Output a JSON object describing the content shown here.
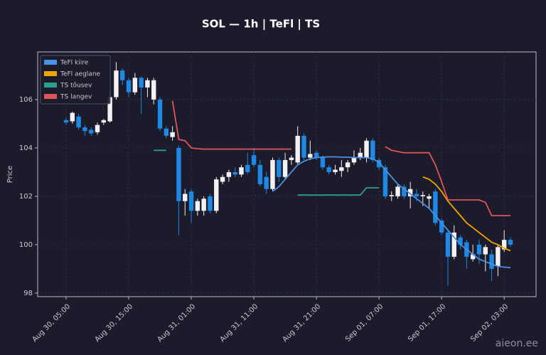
{
  "chart_data": {
    "type": "candlestick",
    "title": "SOL — 1h  |  TeFl  |  TS",
    "y_label": "Price",
    "watermark": "aieon.ee",
    "x": [
      "Aug 30, 05:00",
      "Aug 30, 06:00",
      "Aug 30, 07:00",
      "Aug 30, 08:00",
      "Aug 30, 09:00",
      "Aug 30, 10:00",
      "Aug 30, 11:00",
      "Aug 30, 12:00",
      "Aug 30, 13:00",
      "Aug 30, 14:00",
      "Aug 30, 15:00",
      "Aug 30, 16:00",
      "Aug 30, 17:00",
      "Aug 30, 18:00",
      "Aug 30, 19:00",
      "Aug 30, 20:00",
      "Aug 30, 21:00",
      "Aug 30, 22:00",
      "Aug 30, 23:00",
      "Aug 31, 00:00",
      "Aug 31, 01:00",
      "Aug 31, 02:00",
      "Aug 31, 03:00",
      "Aug 31, 04:00",
      "Aug 31, 05:00",
      "Aug 31, 06:00",
      "Aug 31, 07:00",
      "Aug 31, 08:00",
      "Aug 31, 09:00",
      "Aug 31, 10:00",
      "Aug 31, 11:00",
      "Aug 31, 12:00",
      "Aug 31, 13:00",
      "Aug 31, 14:00",
      "Aug 31, 15:00",
      "Aug 31, 16:00",
      "Aug 31, 17:00",
      "Aug 31, 18:00",
      "Aug 31, 19:00",
      "Aug 31, 20:00",
      "Aug 31, 21:00",
      "Aug 31, 22:00",
      "Aug 31, 23:00",
      "Sep 01, 00:00",
      "Sep 01, 01:00",
      "Sep 01, 02:00",
      "Sep 01, 03:00",
      "Sep 01, 04:00",
      "Sep 01, 05:00",
      "Sep 01, 06:00",
      "Sep 01, 07:00",
      "Sep 01, 08:00",
      "Sep 01, 09:00",
      "Sep 01, 10:00",
      "Sep 01, 11:00",
      "Sep 01, 12:00",
      "Sep 01, 13:00",
      "Sep 01, 14:00",
      "Sep 01, 15:00",
      "Sep 01, 16:00",
      "Sep 01, 17:00",
      "Sep 01, 18:00",
      "Sep 01, 19:00",
      "Sep 01, 20:00",
      "Sep 01, 21:00",
      "Sep 01, 22:00",
      "Sep 01, 23:00",
      "Sep 02, 00:00",
      "Sep 02, 01:00",
      "Sep 02, 02:00",
      "Sep 02, 03:00",
      "Sep 02, 04:00"
    ],
    "candles": {
      "open": [
        105.15,
        105.1,
        105.3,
        104.85,
        104.75,
        104.65,
        105.05,
        105.1,
        106.1,
        107.2,
        106.8,
        106.3,
        106.9,
        106.5,
        106.0,
        106.0,
        104.8,
        104.45,
        104.0,
        101.8,
        102.2,
        101.4,
        101.4,
        102.0,
        101.4,
        102.6,
        102.8,
        103.0,
        102.9,
        103.3,
        103.7,
        103.3,
        102.8,
        102.3,
        103.5,
        102.8,
        103.5,
        103.4,
        104.5,
        103.6,
        103.8,
        103.6,
        103.2,
        103.0,
        103.05,
        103.2,
        103.4,
        103.6,
        103.6,
        104.3,
        103.5,
        103.2,
        102.0,
        102.0,
        102.4,
        102.0,
        102.1,
        102.0,
        101.9,
        102.2,
        101.0,
        100.5,
        99.5,
        100.3,
        100.1,
        99.4,
        100.0,
        99.6,
        99.6,
        99.1,
        99.8,
        100.2
      ],
      "high": [
        105.25,
        105.5,
        105.4,
        104.95,
        104.85,
        105.05,
        105.2,
        106.3,
        107.55,
        107.3,
        106.9,
        107.1,
        106.95,
        106.9,
        106.9,
        106.1,
        104.9,
        104.9,
        104.1,
        102.3,
        102.3,
        101.9,
        102.0,
        102.1,
        102.8,
        102.9,
        103.1,
        103.2,
        103.3,
        103.8,
        104.0,
        103.5,
        103.0,
        103.6,
        103.6,
        103.8,
        103.7,
        104.9,
        104.6,
        104.3,
        103.9,
        103.7,
        103.3,
        103.3,
        103.5,
        103.5,
        103.9,
        104.0,
        104.4,
        104.4,
        103.6,
        103.3,
        102.2,
        102.5,
        102.5,
        102.6,
        102.3,
        102.2,
        102.1,
        102.3,
        101.1,
        100.6,
        100.8,
        100.4,
        100.2,
        100.0,
        100.2,
        100.0,
        99.8,
        100.0,
        100.6,
        100.3
      ],
      "low": [
        104.95,
        105.0,
        104.75,
        104.5,
        104.5,
        104.55,
        104.95,
        105.05,
        106.0,
        106.6,
        106.1,
        106.2,
        105.4,
        106.1,
        105.8,
        104.7,
        104.4,
        104.3,
        100.4,
        101.2,
        100.9,
        101.2,
        101.2,
        101.3,
        101.3,
        102.5,
        102.6,
        102.8,
        102.8,
        102.9,
        103.2,
        102.4,
        102.1,
        102.2,
        102.6,
        102.7,
        103.3,
        103.3,
        103.5,
        103.5,
        103.5,
        103.1,
        102.9,
        102.9,
        102.8,
        103.0,
        103.3,
        103.5,
        103.4,
        103.4,
        103.1,
        101.9,
        101.8,
        101.9,
        101.9,
        101.5,
        101.8,
        101.6,
        101.5,
        100.8,
        100.4,
        98.3,
        99.4,
        99.8,
        99.0,
        99.3,
        99.2,
        98.9,
        98.5,
        98.7,
        99.7,
        99.9
      ],
      "close": [
        105.05,
        105.45,
        104.85,
        104.7,
        104.6,
        104.95,
        105.15,
        106.1,
        107.2,
        106.8,
        106.3,
        106.9,
        106.5,
        106.8,
        106.8,
        104.8,
        104.5,
        104.65,
        101.8,
        102.1,
        101.4,
        101.8,
        101.9,
        101.4,
        102.7,
        102.8,
        103.0,
        102.9,
        103.2,
        103.0,
        103.3,
        102.5,
        102.3,
        103.5,
        102.8,
        103.5,
        103.6,
        104.5,
        103.6,
        103.75,
        103.6,
        103.2,
        103.0,
        103.1,
        103.2,
        103.4,
        103.6,
        103.8,
        104.3,
        103.5,
        103.2,
        102.0,
        102.05,
        102.4,
        102.0,
        102.3,
        102.0,
        102.05,
        102.0,
        100.9,
        100.5,
        99.5,
        100.5,
        100.0,
        99.5,
        99.6,
        99.6,
        99.9,
        99.0,
        99.9,
        100.2,
        100.0
      ],
      "up_color": "#f2f2f2",
      "down_color": "#1e88e5"
    },
    "series": [
      {
        "name": "TeFl kiire",
        "color": "#4a90e2",
        "values": [
          null,
          null,
          null,
          null,
          null,
          null,
          null,
          null,
          null,
          null,
          null,
          null,
          null,
          null,
          null,
          null,
          null,
          null,
          null,
          null,
          null,
          null,
          null,
          null,
          null,
          null,
          null,
          null,
          null,
          null,
          null,
          null,
          null,
          102.2,
          102.4,
          102.7,
          103.0,
          103.3,
          103.45,
          103.55,
          103.6,
          103.62,
          103.63,
          103.63,
          103.62,
          103.62,
          103.6,
          103.6,
          103.6,
          103.55,
          103.4,
          103.1,
          102.8,
          102.5,
          102.3,
          102.1,
          101.9,
          101.7,
          101.5,
          101.2,
          100.9,
          100.6,
          100.3,
          100.0,
          99.8,
          99.6,
          99.4,
          99.3,
          99.2,
          99.1,
          99.07,
          99.05
        ]
      },
      {
        "name": "TeFl aeglane",
        "color": "#f0a500",
        "values": [
          null,
          null,
          null,
          null,
          null,
          null,
          null,
          null,
          null,
          null,
          null,
          null,
          null,
          null,
          null,
          null,
          null,
          null,
          null,
          null,
          null,
          null,
          null,
          null,
          null,
          null,
          null,
          null,
          null,
          null,
          null,
          null,
          null,
          null,
          null,
          null,
          null,
          null,
          null,
          null,
          null,
          null,
          null,
          null,
          null,
          null,
          null,
          null,
          null,
          null,
          null,
          null,
          null,
          null,
          null,
          null,
          null,
          102.8,
          102.7,
          102.5,
          102.2,
          101.8,
          101.5,
          101.2,
          100.9,
          100.7,
          100.5,
          100.3,
          100.1,
          100.0,
          99.85,
          99.75
        ]
      },
      {
        "name": "TS tõusev",
        "color": "#2a9d8f",
        "values": [
          null,
          null,
          null,
          null,
          null,
          null,
          null,
          null,
          null,
          null,
          null,
          null,
          null,
          null,
          103.9,
          103.9,
          103.9,
          null,
          null,
          null,
          null,
          null,
          null,
          null,
          null,
          null,
          null,
          null,
          null,
          null,
          null,
          null,
          null,
          null,
          null,
          null,
          null,
          102.05,
          102.05,
          102.05,
          102.05,
          102.05,
          102.05,
          102.05,
          102.05,
          102.05,
          102.05,
          102.05,
          102.35,
          102.35,
          102.35,
          null,
          null,
          null,
          null,
          null,
          null,
          null,
          null,
          null,
          null,
          null,
          null,
          null,
          null,
          null,
          null,
          null,
          null,
          null,
          null,
          null
        ]
      },
      {
        "name": "TS langev",
        "color": "#e05555",
        "values": [
          null,
          null,
          null,
          null,
          null,
          null,
          null,
          null,
          null,
          null,
          null,
          null,
          null,
          null,
          null,
          null,
          null,
          105.95,
          104.35,
          104.3,
          104.0,
          103.97,
          103.95,
          103.95,
          103.95,
          103.95,
          103.95,
          103.95,
          103.95,
          103.95,
          103.95,
          103.95,
          103.95,
          103.95,
          103.95,
          103.95,
          103.95,
          null,
          null,
          null,
          null,
          null,
          null,
          null,
          null,
          null,
          null,
          null,
          null,
          null,
          null,
          104.05,
          103.9,
          103.85,
          103.8,
          103.8,
          103.8,
          103.8,
          103.8,
          103.3,
          102.6,
          101.85,
          101.85,
          101.85,
          101.85,
          101.85,
          101.85,
          101.75,
          101.2,
          101.2,
          101.2,
          101.2
        ]
      }
    ],
    "ylim": [
      97.85,
      107.97
    ],
    "yticks": [
      98,
      100,
      102,
      104,
      106
    ],
    "xticks": [
      "Aug 30, 05:00",
      "Aug 30, 15:00",
      "Aug 31, 01:00",
      "Aug 31, 11:00",
      "Aug 31, 21:00",
      "Sep 01, 07:00",
      "Sep 01, 17:00",
      "Sep 02, 03:00"
    ],
    "grid": true,
    "legend": "upper left"
  }
}
